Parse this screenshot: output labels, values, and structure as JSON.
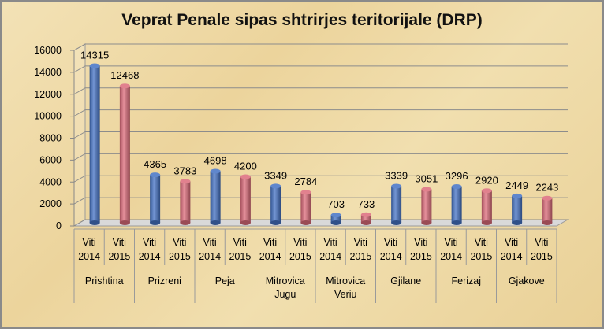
{
  "chart_data": {
    "type": "bar",
    "title": "Veprat Penale sipas shtrirjes teritorijale (DRP)",
    "xlabel": "",
    "ylabel": "",
    "ylim": [
      0,
      16000
    ],
    "yticks": [
      0,
      2000,
      4000,
      6000,
      8000,
      10000,
      12000,
      14000,
      16000
    ],
    "grid": true,
    "legend": "none",
    "categories": [
      "Prishtina",
      "Prizreni",
      "Peja",
      "Mitrovica Jugu",
      "Mitrovica Veriu",
      "Gjilane",
      "Ferizaj",
      "Gjakove"
    ],
    "series": [
      {
        "name": "Viti 2014",
        "color": "#4472c4",
        "values": [
          14315,
          4365,
          4698,
          3349,
          703,
          3339,
          3296,
          2449
        ]
      },
      {
        "name": "Viti 2015",
        "color": "#dc6b7a",
        "values": [
          12468,
          3783,
          4200,
          2784,
          733,
          3051,
          2920,
          2243
        ]
      }
    ],
    "category_label_lines": [
      [
        "Prishtina"
      ],
      [
        "Prizreni"
      ],
      [
        "Peja"
      ],
      [
        "Mitrovica",
        "Jugu"
      ],
      [
        "Mitrovica",
        "Veriu"
      ],
      [
        "Gjilane"
      ],
      [
        "Ferizaj"
      ],
      [
        "Gjakove"
      ]
    ],
    "series_label_lines": [
      [
        "Viti",
        "2014"
      ],
      [
        "Viti",
        "2015"
      ]
    ]
  }
}
